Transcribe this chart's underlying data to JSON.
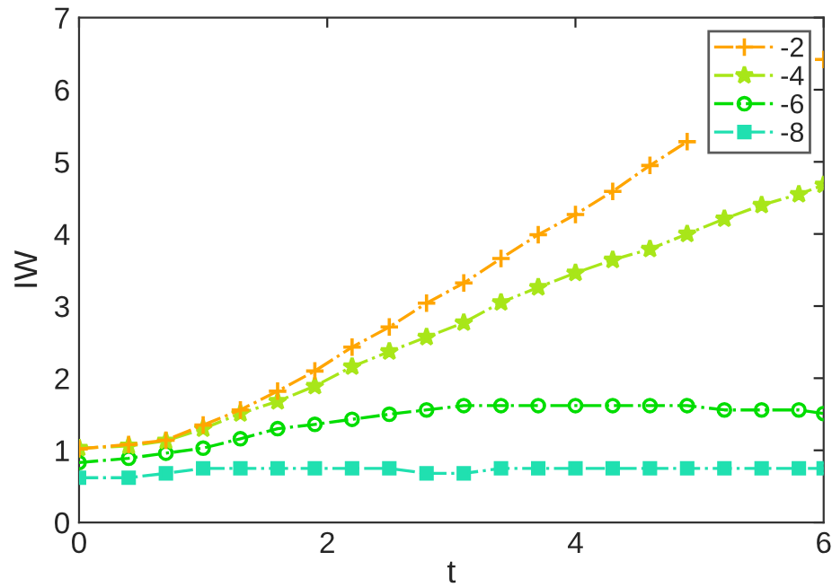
{
  "chart_data": {
    "type": "line",
    "xlabel": "t",
    "ylabel": "IW",
    "xlim": [
      0,
      6
    ],
    "ylim": [
      0,
      7
    ],
    "xticks": [
      0,
      2,
      4,
      6
    ],
    "yticks": [
      0,
      1,
      2,
      3,
      4,
      5,
      6,
      7
    ],
    "x": [
      0,
      0.4,
      0.7,
      1.0,
      1.3,
      1.6,
      1.9,
      2.2,
      2.5,
      2.8,
      3.1,
      3.4,
      3.7,
      4.0,
      4.3,
      4.6,
      4.9,
      5.2,
      5.5,
      5.8,
      6.0
    ],
    "grid": false,
    "legend": "top right",
    "line_style": "dashdot",
    "series": [
      {
        "name": "-2",
        "color": "#ffa500",
        "marker": "cross",
        "values": [
          1.02,
          1.08,
          1.14,
          1.35,
          1.56,
          1.82,
          2.1,
          2.43,
          2.71,
          3.04,
          3.32,
          3.66,
          3.99,
          4.27,
          4.59,
          4.95,
          5.28,
          null,
          null,
          null,
          6.42
        ]
      },
      {
        "name": "-4",
        "color": "#a8e619",
        "marker": "star",
        "values": [
          1.03,
          1.06,
          1.13,
          1.3,
          1.51,
          1.68,
          1.89,
          2.16,
          2.37,
          2.57,
          2.77,
          3.05,
          3.26,
          3.46,
          3.64,
          3.79,
          4.0,
          4.21,
          4.4,
          4.55,
          4.68
        ]
      },
      {
        "name": "-6",
        "color": "#00dd00",
        "marker": "circle",
        "values": [
          0.83,
          0.89,
          0.96,
          1.03,
          1.16,
          1.3,
          1.36,
          1.43,
          1.5,
          1.56,
          1.62,
          1.62,
          1.62,
          1.62,
          1.62,
          1.62,
          1.62,
          1.56,
          1.56,
          1.56,
          1.51
        ]
      },
      {
        "name": "-8",
        "color": "#20e0b0",
        "marker": "square",
        "values": [
          0.62,
          0.62,
          0.68,
          0.75,
          0.75,
          0.75,
          0.75,
          0.75,
          0.75,
          0.68,
          0.68,
          0.75,
          0.75,
          0.75,
          0.75,
          0.75,
          0.75,
          0.75,
          0.75,
          0.75,
          0.75
        ]
      }
    ]
  }
}
